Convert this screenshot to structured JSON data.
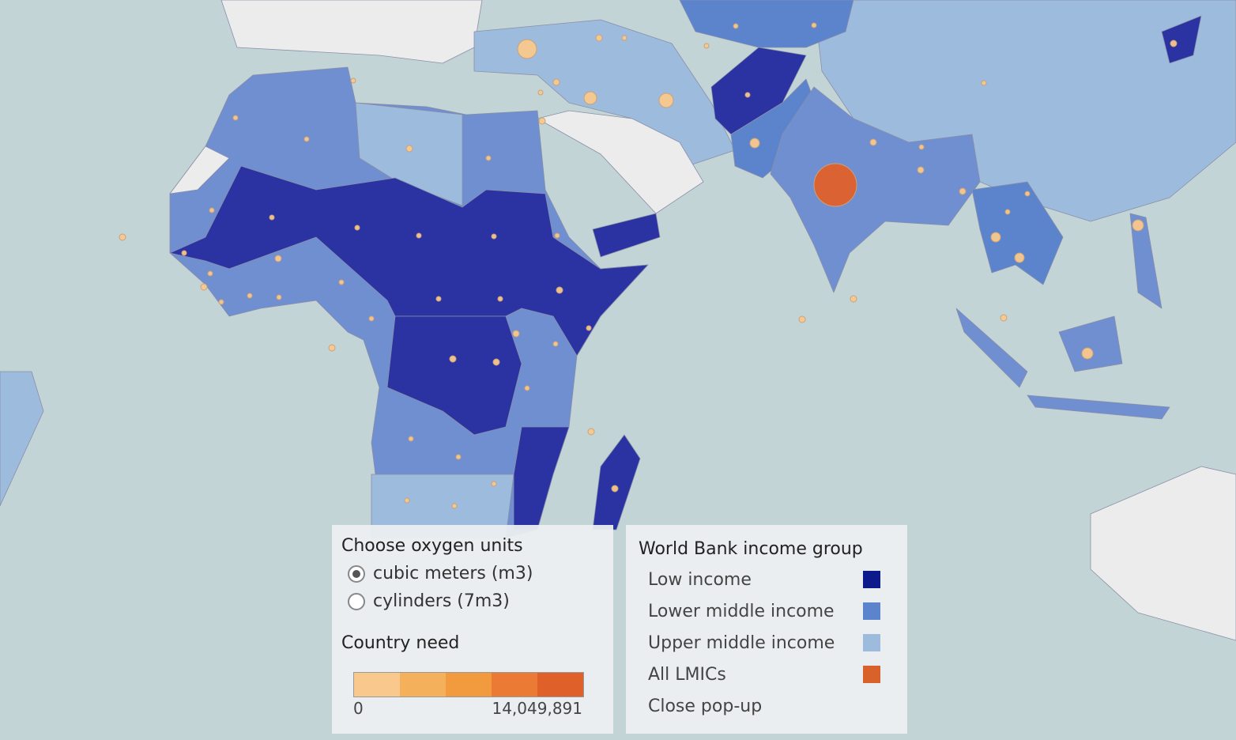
{
  "oxygen_units": {
    "title": "Choose oxygen units",
    "options": [
      "cubic meters (m3)",
      "cylinders (7m3)"
    ],
    "selected": 0
  },
  "country_need": {
    "title": "Country need",
    "min": 0,
    "max": {
      "value": 14049891,
      "label": "14,049,891"
    },
    "colors": [
      "#f9c88c",
      "#f5b05c",
      "#f19a3e",
      "#eb7a34",
      "#e0602a"
    ]
  },
  "income_legend": {
    "title": "World Bank income group",
    "items": [
      {
        "label": "Low income",
        "color": "#0c1a8c"
      },
      {
        "label": "Lower middle income",
        "color": "#5b84cc"
      },
      {
        "label": "Upper middle income",
        "color": "#9dbbdc"
      },
      {
        "label": "All LMICs",
        "color": "#d9622b"
      }
    ],
    "close": "Close pop-up"
  }
}
